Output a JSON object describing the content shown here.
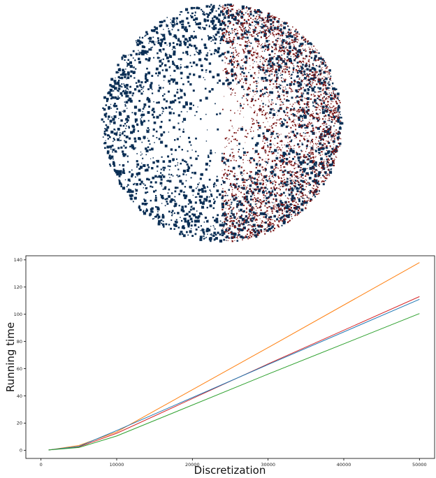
{
  "chart_data": [
    {
      "type": "scatter",
      "title": "",
      "xlabel": "",
      "ylabel": "",
      "axes": "off",
      "shape": "disk",
      "series": [
        {
          "color": "#0b2f55",
          "region": "full disk, larger square markers"
        },
        {
          "color": "#7a1414",
          "region": "right half only, small markers overlaid"
        }
      ]
    },
    {
      "type": "line",
      "title": "",
      "xlabel": "Discretization",
      "ylabel": "Running time",
      "xlim": [
        -2000,
        52000
      ],
      "ylim": [
        -6,
        143
      ],
      "xticks": [
        0,
        10000,
        20000,
        30000,
        40000,
        50000
      ],
      "yticks": [
        0,
        20,
        40,
        60,
        80,
        100,
        120,
        140
      ],
      "grid": false,
      "legend": "none",
      "x": [
        1000,
        5000,
        10000,
        30000,
        50000
      ],
      "series": [
        {
          "color": "#ff7f0e",
          "values": [
            0.2,
            3.5,
            13.5,
            75.5,
            138
          ]
        },
        {
          "color": "#d62728",
          "values": [
            0.2,
            2.5,
            12.5,
            63.5,
            113
          ]
        },
        {
          "color": "#1f77b4",
          "values": [
            0.2,
            2.8,
            14.5,
            63.0,
            111
          ]
        },
        {
          "color": "#2ca02c",
          "values": [
            0.2,
            2.0,
            10.5,
            56.0,
            100.5
          ]
        }
      ]
    }
  ]
}
